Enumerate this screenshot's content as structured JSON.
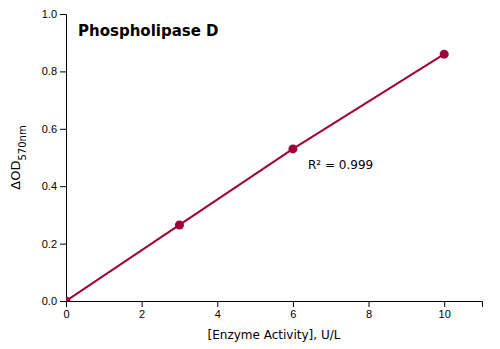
{
  "chart_data": {
    "type": "line",
    "title": "Phospholipase D",
    "xlabel": "[Enzyme Activity], U/L",
    "ylabel": "ΔOD570nm",
    "x": [
      0,
      3,
      6,
      10
    ],
    "values": [
      0.0,
      0.265,
      0.53,
      0.86
    ],
    "color": "#A0003A",
    "marker": "o",
    "xlim": [
      0,
      11
    ],
    "ylim": [
      0.0,
      1.0
    ],
    "xticks": [
      0,
      2,
      4,
      6,
      8,
      10
    ],
    "yticks": [
      {
        "value": 0.0,
        "label": "0.0"
      },
      0.2,
      0.4,
      0.6,
      0.8,
      {
        "value": 1.0,
        "label": "1.0"
      }
    ],
    "annotations": [
      {
        "text": "R² = 0.999",
        "x": 6.4,
        "y": 0.46
      }
    ]
  }
}
